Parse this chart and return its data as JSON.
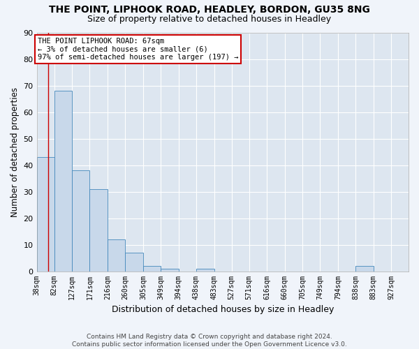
{
  "title1": "THE POINT, LIPHOOK ROAD, HEADLEY, BORDON, GU35 8NG",
  "title2": "Size of property relative to detached houses in Headley",
  "xlabel": "Distribution of detached houses by size in Headley",
  "ylabel": "Number of detached properties",
  "bar_values": [
    43,
    68,
    38,
    31,
    12,
    7,
    2,
    1,
    0,
    1,
    0,
    0,
    0,
    0,
    0,
    0,
    0,
    0,
    2,
    0,
    0
  ],
  "bin_edges": [
    38,
    82,
    127,
    171,
    216,
    260,
    305,
    349,
    394,
    438,
    483,
    527,
    571,
    616,
    660,
    705,
    749,
    794,
    838,
    883,
    927,
    971
  ],
  "x_labels": [
    "38sqm",
    "82sqm",
    "127sqm",
    "171sqm",
    "216sqm",
    "260sqm",
    "305sqm",
    "349sqm",
    "394sqm",
    "438sqm",
    "483sqm",
    "527sqm",
    "571sqm",
    "616sqm",
    "660sqm",
    "705sqm",
    "749sqm",
    "794sqm",
    "838sqm",
    "883sqm",
    "927sqm"
  ],
  "bar_color": "#c8d8ea",
  "bar_edge_color": "#4488bb",
  "ylim": [
    0,
    90
  ],
  "yticks": [
    0,
    10,
    20,
    30,
    40,
    50,
    60,
    70,
    80,
    90
  ],
  "property_line_x": 67,
  "property_line_color": "#cc0000",
  "annotation_text": "THE POINT LIPHOOK ROAD: 67sqm\n← 3% of detached houses are smaller (6)\n97% of semi-detached houses are larger (197) →",
  "annotation_box_color": "#ffffff",
  "annotation_box_edge_color": "#cc0000",
  "footer_text": "Contains HM Land Registry data © Crown copyright and database right 2024.\nContains public sector information licensed under the Open Government Licence v3.0.",
  "background_color": "#f0f4fa",
  "plot_bg_color": "#dde6f0",
  "grid_color": "#ffffff",
  "title_fontsize": 10,
  "subtitle_fontsize": 9
}
